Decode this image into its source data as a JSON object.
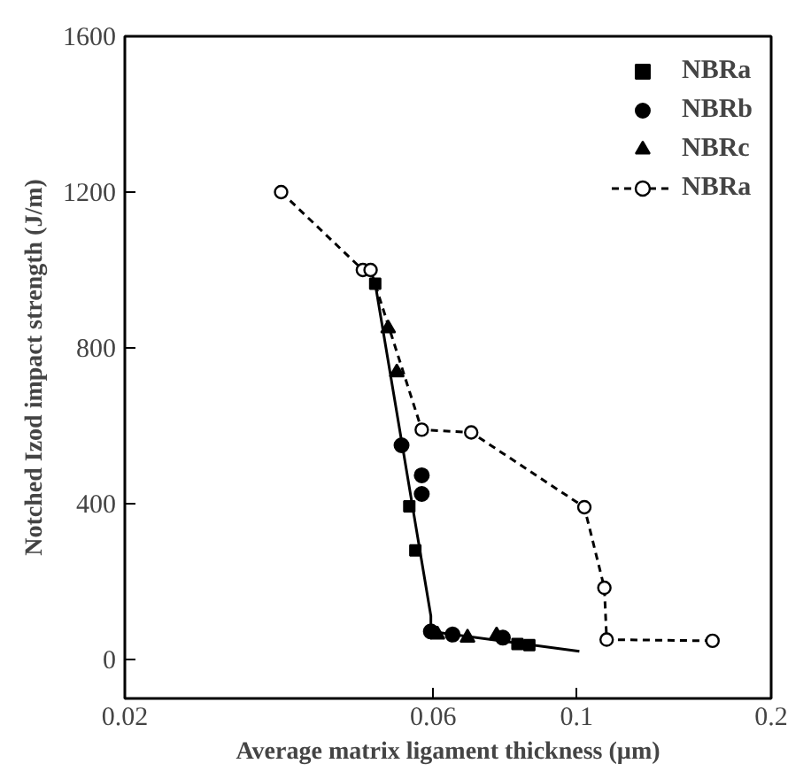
{
  "chart_data": {
    "type": "scatter",
    "xlabel": "Average matrix ligament thickness (µm)",
    "ylabel": "Notched Izod impact strength (J/m)",
    "log": "x",
    "xlim": [
      0.02,
      0.2
    ],
    "xticks": [
      0.02,
      0.06,
      0.1,
      0.2
    ],
    "ylim": [
      -100,
      1600
    ],
    "yticks": [
      0,
      400,
      800,
      1200,
      1600
    ],
    "grid": false,
    "legend": "top right",
    "series": [
      {
        "name": "NBRa",
        "color": "#000000",
        "marker": "square",
        "x": [
          0.0488,
          0.0551,
          0.0563,
          0.081,
          0.0845
        ],
        "values": [
          965,
          393,
          280,
          40,
          37
        ]
      },
      {
        "name": "NBRb",
        "color": "#000000",
        "marker": "circle",
        "x": [
          0.0536,
          0.0576,
          0.0576,
          0.0595,
          0.0643,
          0.0769
        ],
        "values": [
          550,
          473,
          425,
          72,
          64,
          56
        ]
      },
      {
        "name": "NBRc",
        "color": "#000000",
        "marker": "triangle",
        "x": [
          0.0511,
          0.0527,
          0.0609,
          0.0678,
          0.0752
        ],
        "values": [
          850,
          737,
          64,
          56,
          62
        ]
      },
      {
        "name": "NBRa",
        "type": "line",
        "color": "#000000",
        "marker": "circle",
        "line_style": "dashed",
        "x": [
          0.0349,
          0.0467,
          0.048,
          0.0576,
          0.0687,
          0.1028,
          0.1104,
          0.1113,
          0.1623
        ],
        "values": [
          1200,
          1000,
          1000,
          590,
          583,
          391,
          184,
          51,
          48
        ]
      },
      {
        "type": "line",
        "color": "#000000",
        "marker": "none",
        "line_style": "solid",
        "x": [
          0.0488,
          0.0595,
          0.0595,
          0.101
        ],
        "values": [
          965,
          112,
          72,
          21
        ]
      }
    ]
  }
}
